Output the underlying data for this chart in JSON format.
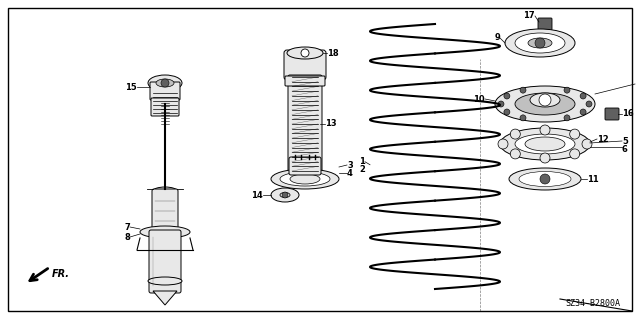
{
  "bg_color": "#ffffff",
  "line_color": "#000000",
  "fill_light": "#e8e8e8",
  "fill_mid": "#c0c0c0",
  "fill_dark": "#606060",
  "diagram_code": "SZ34-B2800A",
  "figsize": [
    6.4,
    3.19
  ],
  "dpi": 100
}
